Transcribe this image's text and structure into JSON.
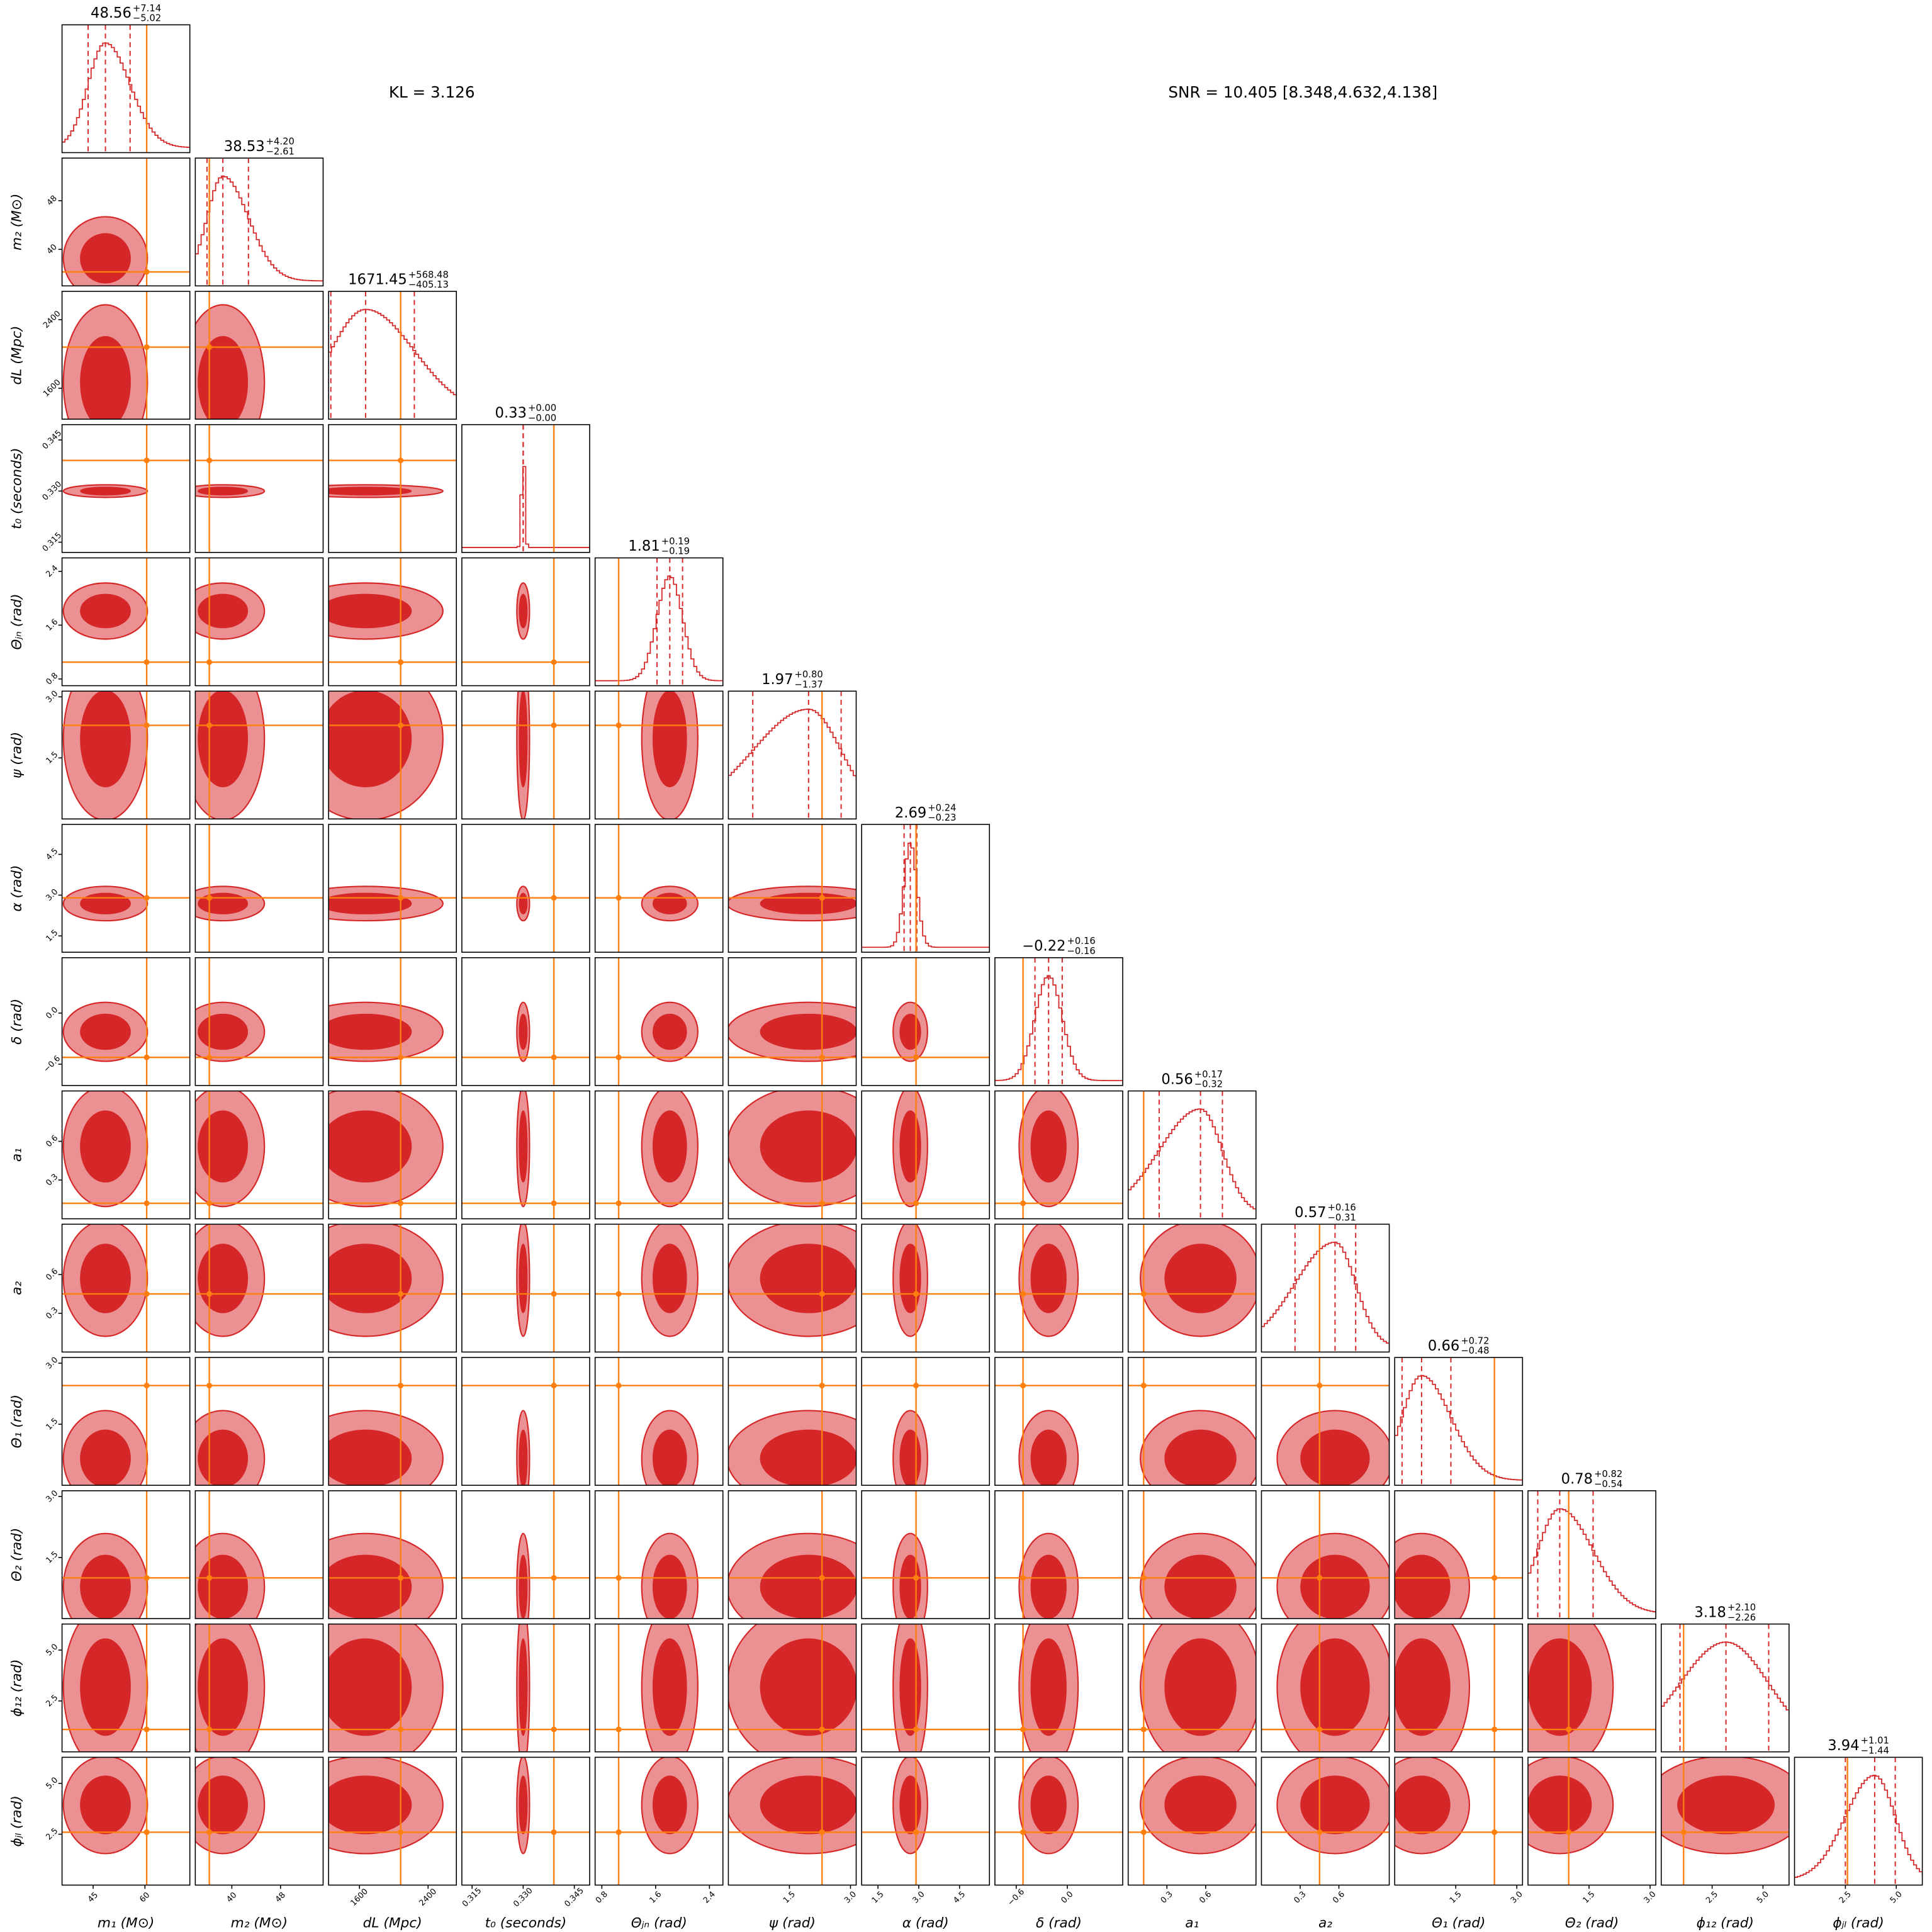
{
  "chart_data": {
    "type": "corner",
    "color": "#d62728",
    "light_color": "#eb9193",
    "truth_color": "#ff7f0e",
    "annotations": [
      "KL = 3.126",
      "SNR = 10.405 [8.348,4.632,4.138]"
    ],
    "params": [
      {
        "label": "m₁ (M⊙)",
        "median": 48.56,
        "plus": {
          "value": 7.14,
          "label": "+7.14"
        },
        "minus": {
          "value": -5.02,
          "label": "−5.02"
        },
        "lim": [
          36,
          73
        ],
        "ticks": [
          45,
          60
        ],
        "truth": 60.5
      },
      {
        "label": "m₂ (M⊙)",
        "median": 38.53,
        "plus": {
          "value": 4.2,
          "label": "+4.20"
        },
        "minus": {
          "value": -2.61,
          "label": "−2.61"
        },
        "lim": [
          34,
          55
        ],
        "ticks": [
          40,
          48
        ],
        "truth": 36.3
      },
      {
        "label": "dL (Mpc)",
        "median": 1671.45,
        "plus": {
          "value": 568.48,
          "label": "+568.48"
        },
        "minus": {
          "value": -405.13,
          "label": "−405.13"
        },
        "lim": [
          1240,
          2730
        ],
        "ticks": [
          1600,
          2400
        ],
        "truth": 2080
      },
      {
        "label": "t₀ (seconds)",
        "median": 0.33,
        "plus": {
          "value": 0,
          "label": "+0.00"
        },
        "minus": {
          "value": 0,
          "label": "−0.00"
        },
        "lim": [
          0.312,
          0.3495
        ],
        "ticks": [
          0.315,
          {
            "value": 0.33,
            "label": "0.330"
          },
          0.345
        ],
        "truth": 0.339
      },
      {
        "label": "Θⱼₙ (rad)",
        "median": 1.81,
        "plus": {
          "value": 0.19,
          "label": "+0.19"
        },
        "minus": {
          "value": -0.19,
          "label": "−0.19"
        },
        "lim": [
          0.7,
          2.6
        ],
        "ticks": [
          0.8,
          1.6,
          2.4
        ],
        "truth": 1.05
      },
      {
        "label": "ψ (rad)",
        "median": 1.97,
        "plus": {
          "value": 0.8,
          "label": "+0.80"
        },
        "minus": {
          "value": -1.37,
          "label": "−1.37"
        },
        "lim": [
          0,
          3.14
        ],
        "ticks": [
          1.5,
          {
            "value": 3,
            "label": "3.0"
          }
        ],
        "truth": 2.3
      },
      {
        "label": "α (rad)",
        "median": 2.69,
        "plus": {
          "value": 0.24,
          "label": "+0.24"
        },
        "minus": {
          "value": -0.23,
          "label": "−0.23"
        },
        "lim": [
          0.9,
          5.6
        ],
        "ticks": [
          1.5,
          {
            "value": 3,
            "label": "3.0"
          },
          4.5
        ],
        "truth": 2.9
      },
      {
        "label": "δ (rad)",
        "median": {
          "value": -0.22,
          "label": "−0.22"
        },
        "plus": {
          "value": 0.16,
          "label": "+0.16"
        },
        "minus": {
          "value": -0.16,
          "label": "−0.16"
        },
        "lim": [
          -0.85,
          0.65
        ],
        "ticks": [
          {
            "value": -0.6,
            "label": "−0.6"
          },
          {
            "value": 0,
            "label": "0.0"
          }
        ],
        "truth": -0.52
      },
      {
        "label": "a₁",
        "median": 0.56,
        "plus": {
          "value": 0.17,
          "label": "+0.17"
        },
        "minus": {
          "value": -0.32,
          "label": "−0.32"
        },
        "lim": [
          0,
          0.99
        ],
        "ticks": [
          0.3,
          0.6
        ],
        "truth": 0.12
      },
      {
        "label": "a₂",
        "median": 0.57,
        "plus": {
          "value": 0.16,
          "label": "+0.16"
        },
        "minus": {
          "value": -0.31,
          "label": "−0.31"
        },
        "lim": [
          0,
          0.99
        ],
        "ticks": [
          0.3,
          0.6
        ],
        "truth": 0.45
      },
      {
        "label": "Θ₁ (rad)",
        "median": 0.66,
        "plus": {
          "value": 0.72,
          "label": "+0.72"
        },
        "minus": {
          "value": -0.48,
          "label": "−0.48"
        },
        "lim": [
          0,
          3.14
        ],
        "ticks": [
          1.5,
          {
            "value": 3,
            "label": "3.0"
          }
        ],
        "truth": 2.45
      },
      {
        "label": "Θ₂ (rad)",
        "median": 0.78,
        "plus": {
          "value": 0.82,
          "label": "+0.82"
        },
        "minus": {
          "value": -0.54,
          "label": "−0.54"
        },
        "lim": [
          0,
          3.14
        ],
        "ticks": [
          1.5,
          {
            "value": 3,
            "label": "3.0"
          }
        ],
        "truth": 1.0
      },
      {
        "label": "ϕ₁₂ (rad)",
        "median": 3.18,
        "plus": {
          "value": 2.1,
          "label": "+2.10"
        },
        "minus": {
          "value": -2.26,
          "label": "−2.26"
        },
        "lim": [
          0,
          6.28
        ],
        "ticks": [
          2.5,
          {
            "value": 5,
            "label": "5.0"
          }
        ],
        "truth": 1.1
      },
      {
        "label": "ϕⱼₗ (rad)",
        "median": 3.94,
        "plus": {
          "value": 1.01,
          "label": "+1.01"
        },
        "minus": {
          "value": -1.44,
          "label": "−1.44"
        },
        "lim": [
          0,
          6.28
        ],
        "ticks": [
          2.5,
          {
            "value": 5,
            "label": "5.0"
          }
        ],
        "truth": 2.6
      }
    ]
  }
}
